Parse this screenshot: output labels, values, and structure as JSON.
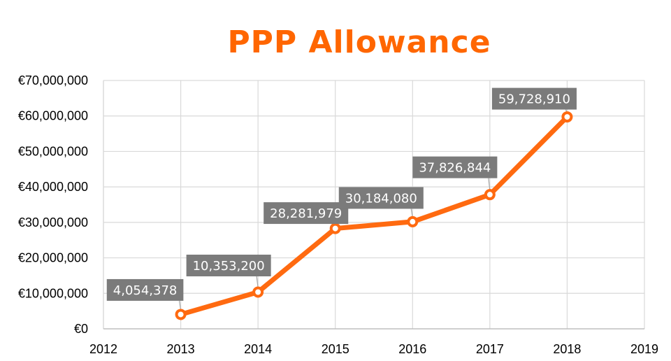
{
  "chart_data": {
    "type": "line",
    "title": "PPP Allowance",
    "xlabel": "",
    "ylabel": "",
    "xlim": [
      2012,
      2019
    ],
    "ylim": [
      0,
      70000000
    ],
    "x_ticks": [
      "2012",
      "2013",
      "2014",
      "2015",
      "2016",
      "2017",
      "2018",
      "2019"
    ],
    "y_ticks": [
      "€0",
      "€10,000,000",
      "€20,000,000",
      "€30,000,000",
      "€40,000,000",
      "€50,000,000",
      "€60,000,000",
      "€70,000,000"
    ],
    "grid": true,
    "series": [
      {
        "x": [
          2013,
          2014,
          2015,
          2016,
          2017,
          2018
        ],
        "values": [
          4054378,
          10353200,
          28281979,
          30184080,
          37826844,
          59728910
        ],
        "labels": [
          "4,054,378",
          "10,353,200",
          "28,281,979",
          "30,184,080",
          "37,826,844",
          "59,728,910"
        ]
      }
    ],
    "colors": {
      "title": "#ff6600",
      "line": "#ff6a10",
      "marker_fill": "#ffffff",
      "label_box": "#7b7b7b",
      "label_text": "#ffffff",
      "grid": "#d9d9d9",
      "leader": "#a6a6a6"
    }
  }
}
